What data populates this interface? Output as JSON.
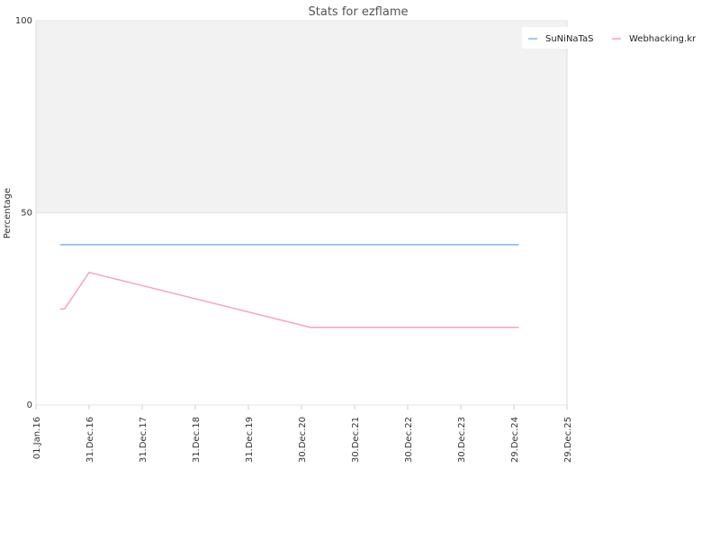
{
  "chart_data": {
    "type": "line",
    "title": "Stats for ezflame",
    "ylabel": "Percentage",
    "xlabel": "",
    "ylim": [
      0,
      100
    ],
    "y_ticks": [
      "0",
      "50",
      "100"
    ],
    "x_range": [
      "2016-01-01",
      "2025-12-29"
    ],
    "x_ticks": [
      {
        "label": "01.Jan.16",
        "date": "2016-01-01"
      },
      {
        "label": "31.Dec.16",
        "date": "2016-12-31"
      },
      {
        "label": "31.Dec.17",
        "date": "2017-12-31"
      },
      {
        "label": "31.Dec.18",
        "date": "2018-12-31"
      },
      {
        "label": "31.Dec.19",
        "date": "2019-12-31"
      },
      {
        "label": "30.Dec.20",
        "date": "2020-12-30"
      },
      {
        "label": "30.Dec.21",
        "date": "2021-12-30"
      },
      {
        "label": "30.Dec.22",
        "date": "2022-12-30"
      },
      {
        "label": "30.Dec.23",
        "date": "2023-12-30"
      },
      {
        "label": "29.Dec.24",
        "date": "2024-12-29"
      },
      {
        "label": "29.Dec.25",
        "date": "2025-12-29"
      }
    ],
    "grid": true,
    "shaded_band": [
      50,
      100
    ],
    "legend_position": "top-right",
    "series": [
      {
        "name": "SuNiNaTaS",
        "color": "#7cb5ec",
        "points": [
          {
            "x": "2016-06-15",
            "y": 41.7
          },
          {
            "x": "2025-02-01",
            "y": 41.7
          }
        ]
      },
      {
        "name": "Webhacking.kr",
        "color": "#f7a1c4",
        "points": [
          {
            "x": "2016-06-15",
            "y": 25.0
          },
          {
            "x": "2016-07-15",
            "y": 25.0
          },
          {
            "x": "2016-12-31",
            "y": 34.5
          },
          {
            "x": "2021-03-01",
            "y": 20.2
          },
          {
            "x": "2025-02-01",
            "y": 20.2
          }
        ]
      }
    ]
  }
}
